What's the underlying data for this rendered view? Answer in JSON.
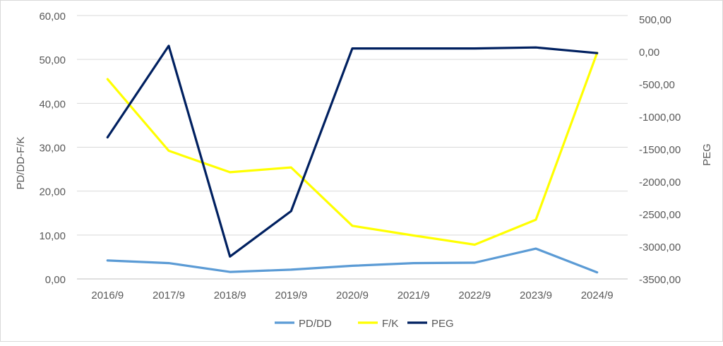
{
  "chart_data": {
    "type": "line",
    "categories": [
      "2016/9",
      "2017/9",
      "2018/9",
      "2019/9",
      "2020/9",
      "2021/9",
      "2022/9",
      "2023/9",
      "2024/9"
    ],
    "series": [
      {
        "name": "PD/DD",
        "axis": "left",
        "color": "#5b9bd5",
        "values": [
          4.2,
          3.6,
          1.6,
          2.1,
          3.0,
          3.6,
          3.7,
          6.9,
          1.5
        ]
      },
      {
        "name": "F/K",
        "axis": "left",
        "color": "#ffff00",
        "values": [
          45.5,
          29.2,
          24.3,
          25.4,
          12.1,
          9.9,
          7.8,
          13.5,
          51.5
        ]
      },
      {
        "name": "PEG",
        "axis": "right",
        "color": "#002060",
        "values": [
          -1350,
          40,
          -3160,
          -2470,
          0,
          0,
          0,
          15,
          -70
        ]
      }
    ],
    "ylabel_left": "PD/DD-F/K",
    "ylabel_right": "PEG",
    "ylim_left": [
      0,
      60
    ],
    "ylim_right": [
      -3500,
      500
    ],
    "yticks_left": [
      "60,00",
      "50,00",
      "40,00",
      "30,00",
      "20,00",
      "10,00",
      "0,00"
    ],
    "yticks_right": [
      "500,00",
      "0,00",
      "-500,00",
      "-1000,00",
      "-1500,00",
      "-2000,00",
      "-2500,00",
      "-3000,00",
      "-3500,00"
    ],
    "grid": true,
    "legend_position": "bottom"
  }
}
